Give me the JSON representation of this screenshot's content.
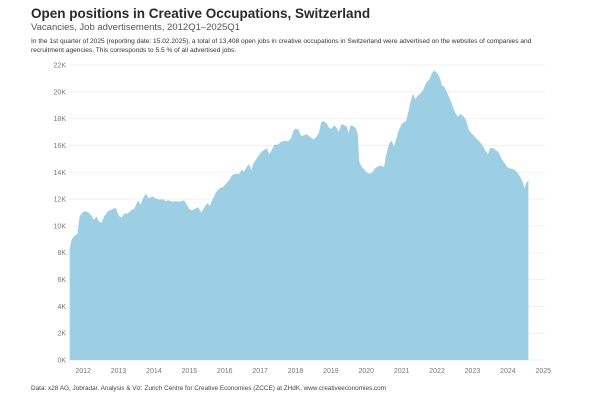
{
  "header": {
    "title": "Open positions in Creative Occupations, Switzerland",
    "subtitle": "Vacancies, Job advertisements, 2012Q1–2025Q1",
    "description": "In the 1st quarter of 2025 (reporting date: 15.02.2025), a total of 13,408 open jobs in creative occupations in Switzerland were advertised on the websites of companies and recruitment agencies. This corresponds to 5.5 % of all advertised jobs."
  },
  "footer": {
    "source": "Data: x28 AG, Jobradar. Analysis & Viz: Zurich Centre for Creative Economies (ZCCE) at ZHdK, www.creativeeconomies.com"
  },
  "colors": {
    "area": "#9ccfe4",
    "grid": "#eeeeee",
    "tick": "#777777"
  },
  "chart_data": {
    "type": "area",
    "title": "Open positions in Creative Occupations, Switzerland",
    "xlabel": "",
    "ylabel": "",
    "grid": true,
    "legend": "none",
    "xlim": [
      2011.6,
      2025.05
    ],
    "ylim": [
      0,
      22000
    ],
    "y_ticks": [
      0,
      2000,
      4000,
      6000,
      8000,
      10000,
      12000,
      14000,
      16000,
      18000,
      20000,
      22000
    ],
    "y_tick_labels": [
      "0K",
      "2K",
      "4K",
      "6K",
      "8K",
      "10K",
      "12K",
      "14K",
      "16K",
      "18K",
      "20K",
      "22K"
    ],
    "x_ticks": [
      2012,
      2013,
      2014,
      2015,
      2016,
      2017,
      2018,
      2019,
      2020,
      2021,
      2022,
      2023,
      2024,
      2025
    ],
    "x_tick_labels": [
      "2012",
      "2013",
      "2014",
      "2015",
      "2016",
      "2017",
      "2018",
      "2019",
      "2020",
      "2021",
      "2022",
      "2023",
      "2024",
      "2025"
    ],
    "series": [
      {
        "points": [
          [
            2011.62,
            8300
          ],
          [
            2011.68,
            9000
          ],
          [
            2011.75,
            9250
          ],
          [
            2011.84,
            9400
          ],
          [
            2011.9,
            10700
          ],
          [
            2011.98,
            11000
          ],
          [
            2012.06,
            11100
          ],
          [
            2012.15,
            11000
          ],
          [
            2012.25,
            10700
          ],
          [
            2012.3,
            10450
          ],
          [
            2012.38,
            10700
          ],
          [
            2012.45,
            10300
          ],
          [
            2012.52,
            10250
          ],
          [
            2012.6,
            10750
          ],
          [
            2012.7,
            11100
          ],
          [
            2012.82,
            11250
          ],
          [
            2012.92,
            11350
          ],
          [
            2013.0,
            10800
          ],
          [
            2013.08,
            10600
          ],
          [
            2013.17,
            10950
          ],
          [
            2013.25,
            10900
          ],
          [
            2013.35,
            11150
          ],
          [
            2013.45,
            11300
          ],
          [
            2013.55,
            11900
          ],
          [
            2013.62,
            11600
          ],
          [
            2013.7,
            12100
          ],
          [
            2013.77,
            12400
          ],
          [
            2013.85,
            12050
          ],
          [
            2013.95,
            12200
          ],
          [
            2014.05,
            12050
          ],
          [
            2014.15,
            11950
          ],
          [
            2014.25,
            12000
          ],
          [
            2014.32,
            11850
          ],
          [
            2014.42,
            11900
          ],
          [
            2014.52,
            11800
          ],
          [
            2014.62,
            11850
          ],
          [
            2014.72,
            11800
          ],
          [
            2014.85,
            11900
          ],
          [
            2014.93,
            11600
          ],
          [
            2015.0,
            11250
          ],
          [
            2015.08,
            11150
          ],
          [
            2015.17,
            11300
          ],
          [
            2015.25,
            11400
          ],
          [
            2015.33,
            11000
          ],
          [
            2015.42,
            11350
          ],
          [
            2015.5,
            11700
          ],
          [
            2015.58,
            11500
          ],
          [
            2015.66,
            12000
          ],
          [
            2015.75,
            12500
          ],
          [
            2015.85,
            12800
          ],
          [
            2015.95,
            12900
          ],
          [
            2016.05,
            13200
          ],
          [
            2016.12,
            13400
          ],
          [
            2016.2,
            13750
          ],
          [
            2016.3,
            13900
          ],
          [
            2016.4,
            13850
          ],
          [
            2016.48,
            14200
          ],
          [
            2016.55,
            14050
          ],
          [
            2016.62,
            14400
          ],
          [
            2016.7,
            14600
          ],
          [
            2016.75,
            14150
          ],
          [
            2016.82,
            14700
          ],
          [
            2016.9,
            15000
          ],
          [
            2017.0,
            15400
          ],
          [
            2017.1,
            15650
          ],
          [
            2017.2,
            15800
          ],
          [
            2017.25,
            15350
          ],
          [
            2017.32,
            15600
          ],
          [
            2017.4,
            16050
          ],
          [
            2017.5,
            16050
          ],
          [
            2017.58,
            16250
          ],
          [
            2017.68,
            16350
          ],
          [
            2017.78,
            16300
          ],
          [
            2017.87,
            16500
          ],
          [
            2017.94,
            17100
          ],
          [
            2018.0,
            17250
          ],
          [
            2018.08,
            17200
          ],
          [
            2018.16,
            16700
          ],
          [
            2018.24,
            16750
          ],
          [
            2018.32,
            16850
          ],
          [
            2018.4,
            16650
          ],
          [
            2018.5,
            16450
          ],
          [
            2018.58,
            16600
          ],
          [
            2018.66,
            16950
          ],
          [
            2018.73,
            17750
          ],
          [
            2018.8,
            17800
          ],
          [
            2018.88,
            17650
          ],
          [
            2018.95,
            17300
          ],
          [
            2019.02,
            17250
          ],
          [
            2019.1,
            17500
          ],
          [
            2019.16,
            17300
          ],
          [
            2019.22,
            17000
          ],
          [
            2019.3,
            17600
          ],
          [
            2019.38,
            17500
          ],
          [
            2019.45,
            17400
          ],
          [
            2019.5,
            16900
          ],
          [
            2019.55,
            17500
          ],
          [
            2019.62,
            17450
          ],
          [
            2019.7,
            17300
          ],
          [
            2019.76,
            16850
          ],
          [
            2019.8,
            14800
          ],
          [
            2019.87,
            14400
          ],
          [
            2019.95,
            14200
          ],
          [
            2020.0,
            14000
          ],
          [
            2020.08,
            13900
          ],
          [
            2020.16,
            13950
          ],
          [
            2020.25,
            14300
          ],
          [
            2020.33,
            14450
          ],
          [
            2020.42,
            14500
          ],
          [
            2020.5,
            14400
          ],
          [
            2020.58,
            15500
          ],
          [
            2020.66,
            16200
          ],
          [
            2020.72,
            16350
          ],
          [
            2020.78,
            15900
          ],
          [
            2020.85,
            16500
          ],
          [
            2020.92,
            17150
          ],
          [
            2021.0,
            17600
          ],
          [
            2021.06,
            17750
          ],
          [
            2021.12,
            17800
          ],
          [
            2021.18,
            18400
          ],
          [
            2021.25,
            19250
          ],
          [
            2021.32,
            19900
          ],
          [
            2021.38,
            19450
          ],
          [
            2021.45,
            19700
          ],
          [
            2021.52,
            19850
          ],
          [
            2021.6,
            20100
          ],
          [
            2021.7,
            20700
          ],
          [
            2021.78,
            20900
          ],
          [
            2021.86,
            21400
          ],
          [
            2021.92,
            21600
          ],
          [
            2022.0,
            21400
          ],
          [
            2022.08,
            21050
          ],
          [
            2022.14,
            20450
          ],
          [
            2022.2,
            20400
          ],
          [
            2022.28,
            19950
          ],
          [
            2022.35,
            19550
          ],
          [
            2022.42,
            19100
          ],
          [
            2022.5,
            18500
          ],
          [
            2022.58,
            18150
          ],
          [
            2022.66,
            18350
          ],
          [
            2022.74,
            18200
          ],
          [
            2022.82,
            17900
          ],
          [
            2022.9,
            17150
          ],
          [
            2022.98,
            16900
          ],
          [
            2023.05,
            16700
          ],
          [
            2023.13,
            16450
          ],
          [
            2023.2,
            16300
          ],
          [
            2023.28,
            16000
          ],
          [
            2023.36,
            15650
          ],
          [
            2023.44,
            15350
          ],
          [
            2023.5,
            15800
          ],
          [
            2023.58,
            15800
          ],
          [
            2023.66,
            15650
          ],
          [
            2023.74,
            15500
          ],
          [
            2023.82,
            15000
          ],
          [
            2023.9,
            14700
          ],
          [
            2023.98,
            14400
          ],
          [
            2024.05,
            14300
          ],
          [
            2024.12,
            14250
          ],
          [
            2024.2,
            14150
          ],
          [
            2024.28,
            13950
          ],
          [
            2024.36,
            13600
          ],
          [
            2024.42,
            13300
          ],
          [
            2024.47,
            12800
          ],
          [
            2024.52,
            13200
          ],
          [
            2024.58,
            13400
          ]
        ]
      }
    ]
  }
}
